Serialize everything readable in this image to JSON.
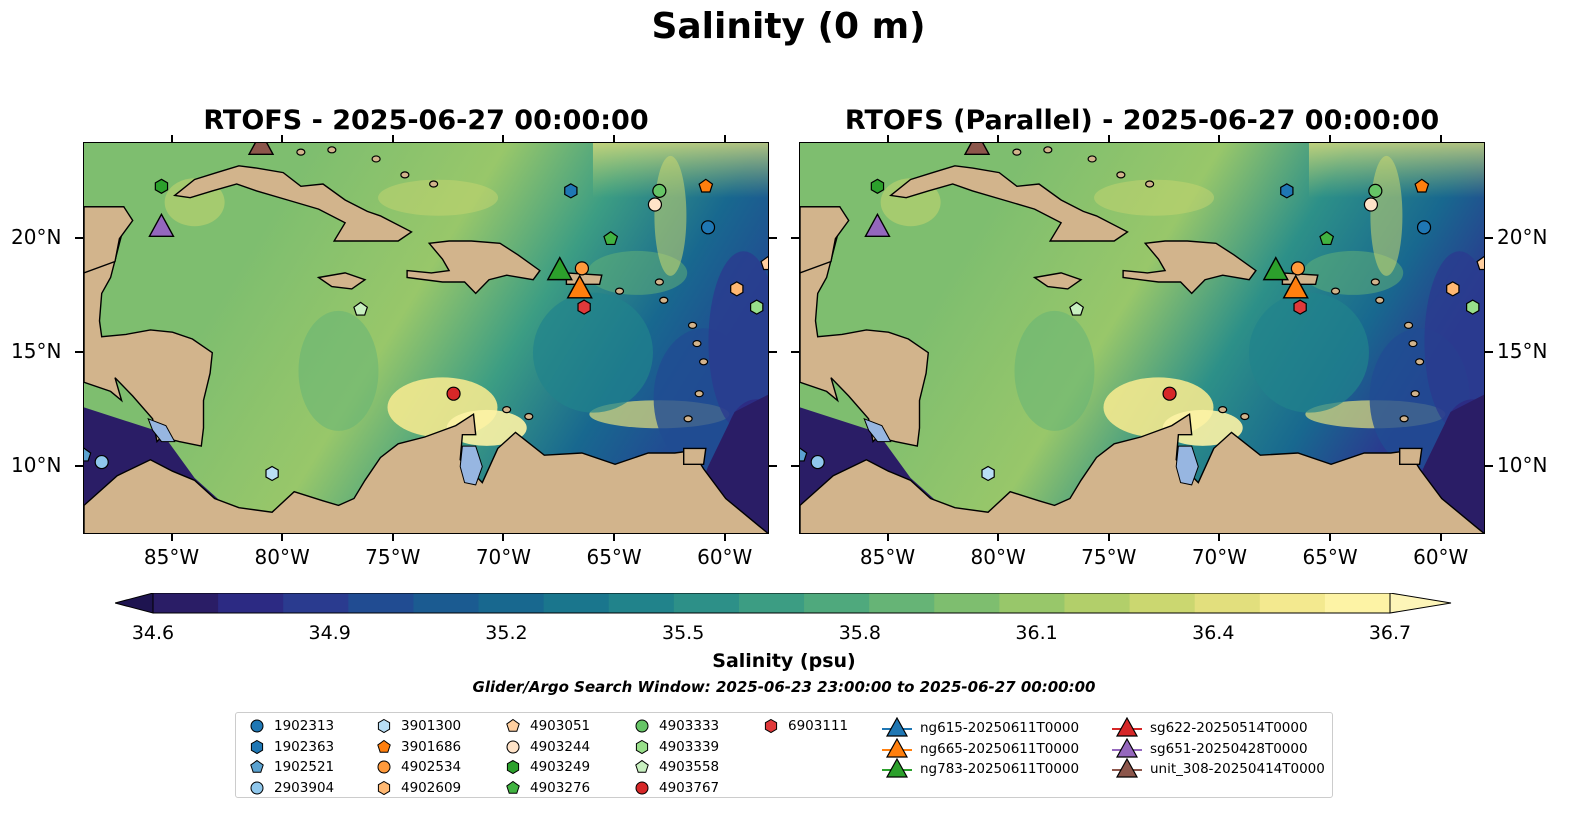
{
  "figure": {
    "suptitle": "Salinity (0 m)",
    "panels": [
      {
        "title": "RTOFS - 2025-06-27 00:00:00",
        "variant": "control"
      },
      {
        "title": "RTOFS (Parallel) - 2025-06-27 00:00:00",
        "variant": "parallel"
      }
    ],
    "lon_range": [
      -89,
      -58
    ],
    "lat_range": [
      7,
      24.2
    ],
    "lon_ticks": [
      "85°W",
      "80°W",
      "75°W",
      "70°W",
      "65°W",
      "60°W"
    ],
    "lon_tick_values": [
      -85,
      -80,
      -75,
      -70,
      -65,
      -60
    ],
    "lat_ticks": [
      "20°N",
      "15°N",
      "10°N"
    ],
    "lat_tick_values": [
      20,
      15,
      10
    ],
    "land_color": "#d2b48c",
    "lake_color": "#97b6e1"
  },
  "colorbar": {
    "label": "Salinity (psu)",
    "tick_labels": [
      "34.6",
      "34.9",
      "35.2",
      "35.5",
      "35.8",
      "36.1",
      "36.4",
      "36.7"
    ],
    "range": [
      34.6,
      36.7
    ],
    "colormap": "haline",
    "colors": [
      "#2a1d66",
      "#2c2a83",
      "#2a3b8f",
      "#214c92",
      "#1b5b91",
      "#18688f",
      "#1a768d",
      "#21838b",
      "#2d9088",
      "#3c9d83",
      "#4fa97d",
      "#66b476",
      "#7ebe6f",
      "#98c76a",
      "#b2cf6a",
      "#cbd770",
      "#e2df7d",
      "#f3e98f",
      "#fdf3a5"
    ]
  },
  "subtitle": "Glider/Argo Search Window: 2025-06-23 23:00:00 to 2025-06-27 00:00:00",
  "observations": [
    {
      "id": "1902313",
      "marker": "circle",
      "color": "#1f77b4",
      "lon": -60.8,
      "lat": 20.5
    },
    {
      "id": "1902363",
      "marker": "hexagon",
      "color": "#1f77b4",
      "lon": -67,
      "lat": 22.1
    },
    {
      "id": "1902521",
      "marker": "pentagon",
      "color": "#5ba2d0",
      "lon": -89,
      "lat": 10.5
    },
    {
      "id": "2903904",
      "marker": "circle",
      "color": "#8fc7ec",
      "lon": -88.2,
      "lat": 10.2
    },
    {
      "id": "3901300",
      "marker": "hexagon",
      "color": "#b9def5",
      "lon": -80.5,
      "lat": 9.7
    },
    {
      "id": "3901686",
      "marker": "pentagon",
      "color": "#ff7f0e",
      "lon": -60.9,
      "lat": 22.3
    },
    {
      "id": "4902534",
      "marker": "circle",
      "color": "#ff9a3c",
      "lon": -66.5,
      "lat": 18.7
    },
    {
      "id": "4902609",
      "marker": "hexagon",
      "color": "#ffb872",
      "lon": -59.5,
      "lat": 17.8
    },
    {
      "id": "4903051",
      "marker": "pentagon",
      "color": "#ffcfa0",
      "lon": -58.1,
      "lat": 18.9
    },
    {
      "id": "4903244",
      "marker": "circle",
      "color": "#ffe3c8",
      "lon": -63.2,
      "lat": 21.5
    },
    {
      "id": "4903249",
      "marker": "hexagon",
      "color": "#2ca02c",
      "lon": -85.5,
      "lat": 22.3
    },
    {
      "id": "4903276",
      "marker": "pentagon",
      "color": "#41b341",
      "lon": -65.2,
      "lat": 20
    },
    {
      "id": "4903333",
      "marker": "circle",
      "color": "#66c566",
      "lon": -63,
      "lat": 22.1
    },
    {
      "id": "4903339",
      "marker": "hexagon",
      "color": "#98df8a",
      "lon": -58.6,
      "lat": 17
    },
    {
      "id": "4903558",
      "marker": "pentagon",
      "color": "#c8f0c0",
      "lon": -76.5,
      "lat": 16.9
    },
    {
      "id": "4903767",
      "marker": "circle",
      "color": "#d62728",
      "lon": -72.3,
      "lat": 13.2
    },
    {
      "id": "6903111",
      "marker": "hexagon",
      "color": "#e0393a",
      "lon": -66.4,
      "lat": 17
    }
  ],
  "gliders": [
    {
      "id": "ng615-20250611T0000",
      "color": "#1f77b4",
      "lon": null,
      "lat": null
    },
    {
      "id": "ng665-20250611T0000",
      "color": "#ff7f0e",
      "lon": -66.6,
      "lat": 17.8
    },
    {
      "id": "ng783-20250611T0000",
      "color": "#2ca02c",
      "lon": -67.5,
      "lat": 18.6
    },
    {
      "id": "sg622-20250514T0000",
      "color": "#d62728",
      "lon": null,
      "lat": null
    },
    {
      "id": "sg651-20250428T0000",
      "color": "#9467bd",
      "lon": -85.5,
      "lat": 20.5
    },
    {
      "id": "unit_308-20250414T0000",
      "color": "#8c564b",
      "lon": -81,
      "lat": 24.1
    }
  ]
}
